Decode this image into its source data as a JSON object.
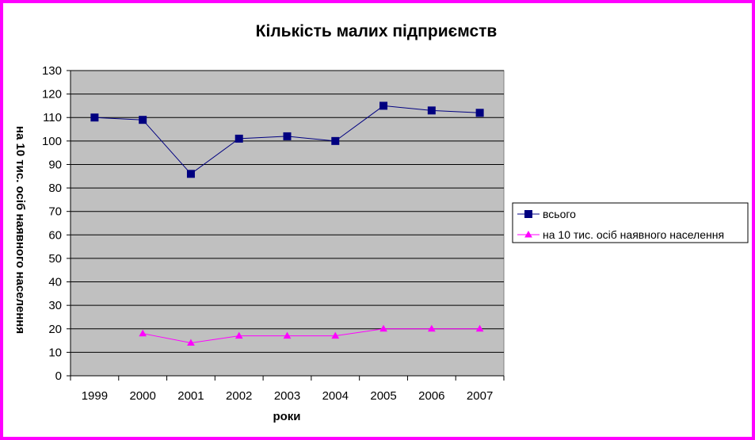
{
  "chart_data": {
    "type": "line",
    "title": "Кількість малих підприємств",
    "xlabel": "роки",
    "ylabel": "на 10 тис. осіб наявного населення",
    "categories": [
      "1999",
      "2000",
      "2001",
      "2002",
      "2003",
      "2004",
      "2005",
      "2006",
      "2007"
    ],
    "ylim": [
      0,
      130
    ],
    "yticks": [
      "0",
      "10",
      "20",
      "30",
      "40",
      "50",
      "60",
      "70",
      "80",
      "90",
      "100",
      "110",
      "120",
      "130"
    ],
    "grid": true,
    "legend_position": "right",
    "series": [
      {
        "name": "всього",
        "color": "#000080",
        "marker": "square",
        "values": [
          110,
          109,
          86,
          101,
          102,
          100,
          115,
          113,
          112
        ]
      },
      {
        "name": "на 10 тис. осіб наявного населення",
        "color": "#ff00ff",
        "marker": "triangle",
        "values": [
          null,
          18,
          14,
          17,
          17,
          17,
          20,
          20,
          20
        ]
      }
    ]
  }
}
